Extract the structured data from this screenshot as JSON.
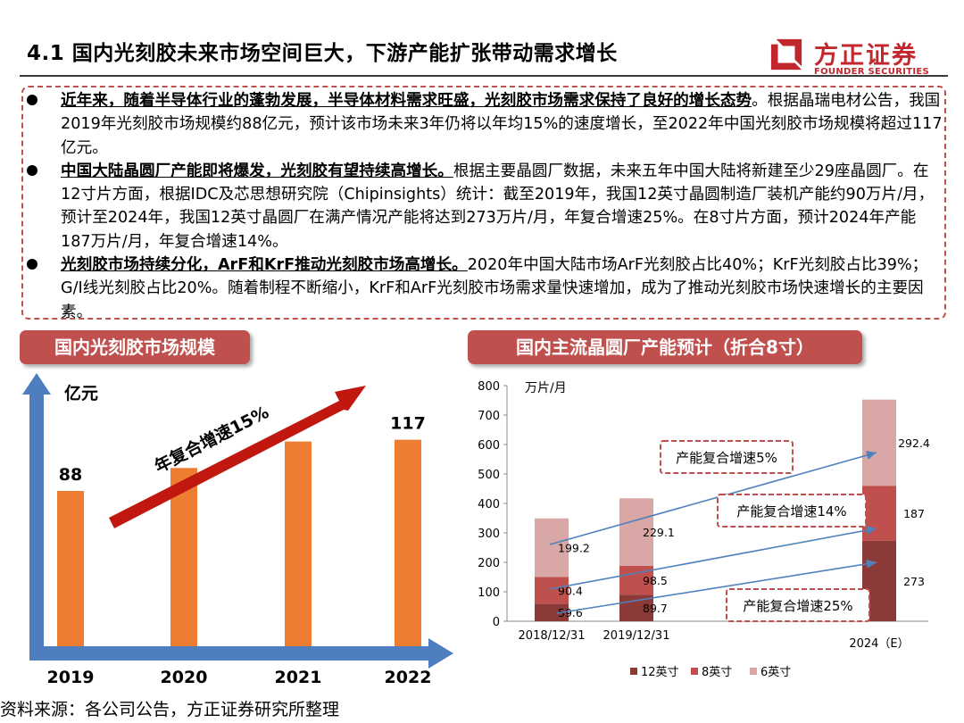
{
  "header": {
    "title": "4.1 国内光刻胶未来市场空间巨大，下游产能扩张带动需求增长",
    "logo_cn": "方正证券",
    "logo_en": "FOUNDER SECURITIES"
  },
  "bullets": [
    {
      "highlight": "近年来，随着半导体行业的蓬勃发展，半导体材料需求旺盛，光刻胶市场需求保持了良好的增长态势",
      "text": "。根据晶瑞电材公告，我国2019年光刻胶市场规模约88亿元，预计该市场未来3年仍将以年均15%的速度增长，至2022年中国光刻胶市场规模将超过117亿元。"
    },
    {
      "highlight": "中国大陆晶圆厂产能即将爆发，光刻胶有望持续高增长。",
      "text": "根据主要晶圆厂数据，未来五年中国大陆将新建至少29座晶圆厂。在12寸片方面，根据IDC及芯思想研究院（Chipinsights）统计：截至2019年，我国12英寸晶圆制造厂装机产能约90万片/月，预计至2024年，我国12英寸晶圆厂在满产情况产能将达到273万片/月，年复合增速25%。在8寸片方面，预计2024年产能187万片/月，年复合增速14%。"
    },
    {
      "highlight": "光刻胶市场持续分化，ArF和KrF推动光刻胶市场高增长。",
      "text": "2020年中国大陆市场ArF光刻胶占比40%；KrF光刻胶占比39%；G/I线光刻胶占比20%。随着制程不断缩小，KrF和ArF光刻胶市场需求量快速增加，成为了推动光刻胶市场快速增长的主要因素。"
    }
  ],
  "colors": {
    "accent": "#c0504d",
    "bar_orange": "#ed7d31",
    "axis_blue": "#4f7ec0",
    "trend_red": "#c0180f",
    "s12": "#8c3a38",
    "s8": "#c0504d",
    "s6": "#d9a7a6",
    "growth_arrow": "#4f81bd"
  },
  "left_section_title": "国内光刻胶市场规模",
  "right_section_title": "国内主流晶圆厂产能预计（折合8寸）",
  "chart_data": [
    {
      "type": "bar",
      "title": "国内光刻胶市场规模",
      "ylabel": "亿元",
      "categories": [
        "2019",
        "2020",
        "2021",
        "2022"
      ],
      "values": [
        88,
        101,
        116,
        117
      ],
      "data_labels": [
        "88",
        "",
        "",
        "117"
      ],
      "trend_annotation": "年复合增速15%",
      "grid": false
    },
    {
      "type": "bar",
      "stacked": true,
      "title": "国内主流晶圆厂产能预计（折合8寸）",
      "ylabel": "万片/月",
      "ylim": [
        0,
        800
      ],
      "yticks": [
        0,
        100,
        200,
        300,
        400,
        500,
        600,
        700,
        800
      ],
      "categories": [
        "2018/12/31",
        "2019/12/31",
        "2024（E）"
      ],
      "series": [
        {
          "name": "12英寸",
          "values": [
            59.6,
            89.7,
            273
          ],
          "labels": [
            "59.6",
            "89.7",
            "273"
          ]
        },
        {
          "name": "8英寸",
          "values": [
            90.4,
            98.5,
            187
          ],
          "labels": [
            "90.4",
            "98.5",
            "187"
          ]
        },
        {
          "name": "6英寸",
          "values": [
            199.2,
            229.1,
            292.4
          ],
          "labels": [
            "199.2",
            "229.1",
            "292.4"
          ]
        }
      ],
      "annotations": [
        "产能复合增速5%",
        "产能复合增速14%",
        "产能复合增速25%"
      ],
      "legend": "bottom",
      "grid": false
    }
  ],
  "footer": "资料来源：各公司公告，方正证券研究所整理"
}
